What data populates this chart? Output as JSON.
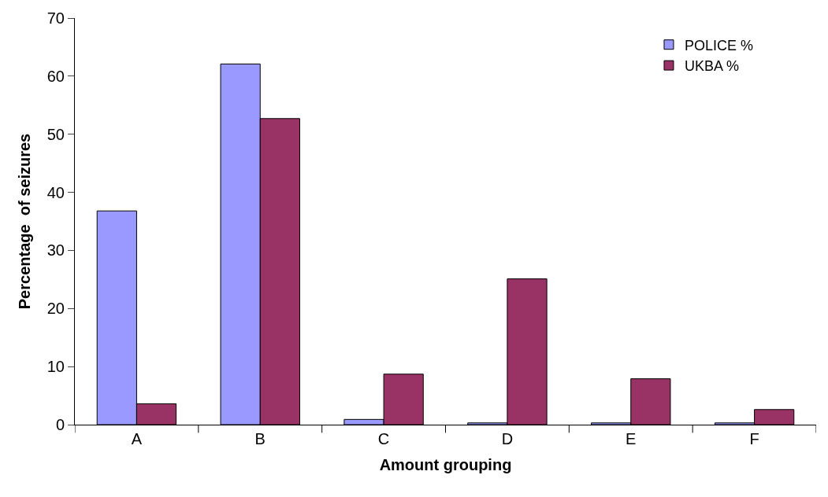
{
  "chart_data": {
    "type": "bar",
    "xlabel": "Amount grouping",
    "ylabel": "Percentage  of seizures",
    "categories": [
      "A",
      "B",
      "C",
      "D",
      "E",
      "F"
    ],
    "series": [
      {
        "name": "POLICE %",
        "color": "#9999ff",
        "values": [
          36.8,
          62.1,
          0.9,
          0.3,
          0.3,
          0.3
        ]
      },
      {
        "name": "UKBA %",
        "color": "#993366",
        "values": [
          3.6,
          52.7,
          8.7,
          25.1,
          7.9,
          2.6
        ]
      }
    ],
    "ylim": [
      0,
      70
    ],
    "yticks": [
      0,
      10,
      20,
      30,
      40,
      50,
      60,
      70
    ],
    "legend": "top right"
  }
}
